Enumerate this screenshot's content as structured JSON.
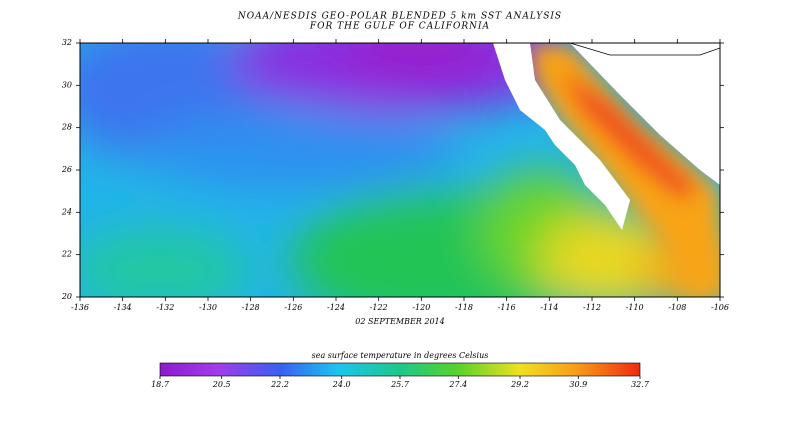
{
  "map": {
    "title_lines": [
      "NOAA/NESDIS GEO-POLAR BLENDED 5 km SST ANALYSIS",
      "FOR THE GULF OF CALIFORNIA"
    ],
    "date": "02 SEPTEMBER 2014",
    "x_ticks": [
      -136,
      -134,
      -132,
      -130,
      -128,
      -126,
      -124,
      -122,
      -120,
      -118,
      -116,
      -114,
      -112,
      -110,
      -108,
      -106
    ],
    "y_ticks": [
      20,
      22,
      24,
      26,
      28,
      30,
      32
    ],
    "colorbar": {
      "label": "sea surface temperature in degrees Celsius",
      "ticks": [
        18.7,
        20.5,
        22.2,
        {
          "value": 24,
          "label": "24.0"
        },
        25.7,
        27.4,
        29.2,
        30.9,
        32.7
      ]
    }
  }
}
